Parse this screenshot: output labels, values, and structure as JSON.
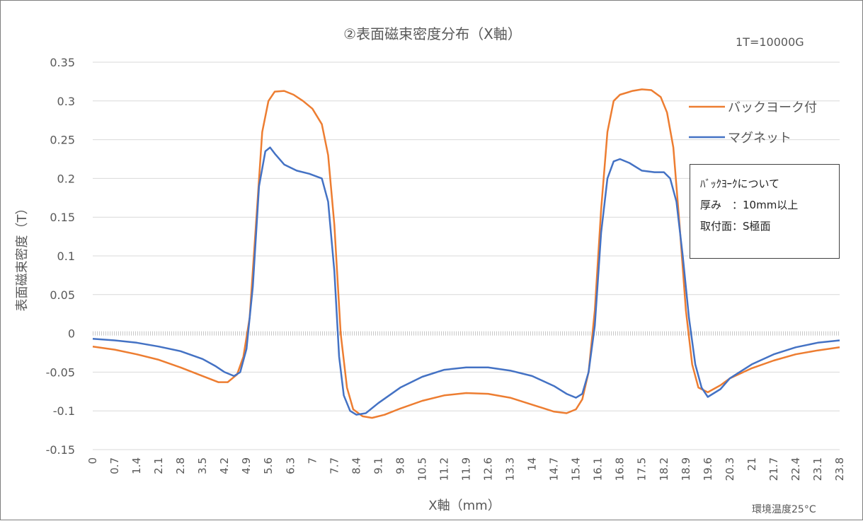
{
  "chart_data": {
    "type": "line",
    "title": "②表面磁束密度分布（X軸）",
    "unit_note": "1T=10000G",
    "xlabel": "X軸（mm）",
    "ylabel": "表面磁束密度（T）",
    "footer_note": "環境温度25°C",
    "ylim": [
      -0.15,
      0.35
    ],
    "yticks": [
      "0.35",
      "0.3",
      "0.25",
      "0.2",
      "0.15",
      "0.1",
      "0.05",
      "0",
      "-0.05",
      "-0.1",
      "-0.15"
    ],
    "xlim": [
      0,
      23.8
    ],
    "xticks": [
      "0",
      "0.7",
      "1.4",
      "2.1",
      "2.8",
      "3.5",
      "4.2",
      "4.9",
      "5.6",
      "6.3",
      "7",
      "7.7",
      "8.4",
      "9.1",
      "9.8",
      "10.5",
      "11.2",
      "11.9",
      "12.6",
      "13.3",
      "14",
      "14.7",
      "15.4",
      "16.1",
      "16.8",
      "17.5",
      "18.2",
      "18.9",
      "19.6",
      "20.3",
      "21",
      "21.7",
      "22.4",
      "23.1",
      "23.8"
    ],
    "grid": true,
    "legend_position": "right",
    "series": [
      {
        "name": "バックヨーク付",
        "color": "#ED7D31",
        "x": [
          0,
          0.7,
          1.4,
          2.1,
          2.8,
          3.5,
          4.0,
          4.3,
          4.6,
          4.8,
          5.0,
          5.2,
          5.4,
          5.6,
          5.8,
          6.1,
          6.4,
          6.7,
          7.0,
          7.3,
          7.5,
          7.7,
          7.9,
          8.1,
          8.3,
          8.6,
          8.9,
          9.3,
          9.8,
          10.5,
          11.2,
          11.9,
          12.6,
          13.3,
          14.0,
          14.7,
          15.1,
          15.4,
          15.6,
          15.8,
          16.0,
          16.2,
          16.4,
          16.6,
          16.8,
          17.2,
          17.5,
          17.8,
          18.1,
          18.3,
          18.5,
          18.7,
          18.9,
          19.1,
          19.3,
          19.6,
          20.0,
          20.3,
          21.0,
          21.7,
          22.4,
          23.1,
          23.8
        ],
        "y": [
          -0.017,
          -0.021,
          -0.027,
          -0.034,
          -0.044,
          -0.055,
          -0.063,
          -0.063,
          -0.053,
          -0.03,
          0.02,
          0.14,
          0.26,
          0.3,
          0.312,
          0.313,
          0.308,
          0.3,
          0.29,
          0.27,
          0.23,
          0.14,
          0.0,
          -0.07,
          -0.098,
          -0.107,
          -0.109,
          -0.105,
          -0.097,
          -0.087,
          -0.08,
          -0.077,
          -0.078,
          -0.083,
          -0.092,
          -0.101,
          -0.103,
          -0.098,
          -0.085,
          -0.05,
          0.03,
          0.16,
          0.26,
          0.3,
          0.308,
          0.313,
          0.315,
          0.314,
          0.305,
          0.285,
          0.24,
          0.14,
          0.03,
          -0.04,
          -0.07,
          -0.076,
          -0.067,
          -0.058,
          -0.045,
          -0.035,
          -0.027,
          -0.022,
          -0.018
        ]
      },
      {
        "name": "マグネット",
        "color": "#4472C4",
        "x": [
          0,
          0.7,
          1.4,
          2.1,
          2.8,
          3.5,
          3.9,
          4.2,
          4.5,
          4.7,
          4.9,
          5.1,
          5.3,
          5.5,
          5.65,
          5.8,
          6.1,
          6.5,
          6.9,
          7.3,
          7.5,
          7.7,
          7.85,
          8.0,
          8.2,
          8.4,
          8.7,
          9.1,
          9.8,
          10.5,
          11.2,
          11.9,
          12.6,
          13.3,
          14.0,
          14.7,
          15.1,
          15.4,
          15.6,
          15.8,
          16.0,
          16.2,
          16.4,
          16.6,
          16.8,
          17.1,
          17.5,
          17.9,
          18.2,
          18.4,
          18.6,
          18.8,
          19.0,
          19.2,
          19.4,
          19.6,
          20.0,
          20.3,
          21.0,
          21.7,
          22.4,
          23.1,
          23.8
        ],
        "y": [
          -0.007,
          -0.009,
          -0.012,
          -0.017,
          -0.023,
          -0.033,
          -0.042,
          -0.05,
          -0.055,
          -0.05,
          -0.02,
          0.06,
          0.19,
          0.235,
          0.24,
          0.232,
          0.218,
          0.21,
          0.206,
          0.2,
          0.17,
          0.08,
          -0.03,
          -0.08,
          -0.1,
          -0.105,
          -0.103,
          -0.09,
          -0.07,
          -0.056,
          -0.047,
          -0.044,
          -0.044,
          -0.048,
          -0.055,
          -0.068,
          -0.078,
          -0.083,
          -0.078,
          -0.05,
          0.01,
          0.13,
          0.2,
          0.222,
          0.225,
          0.22,
          0.21,
          0.208,
          0.208,
          0.2,
          0.17,
          0.1,
          0.02,
          -0.04,
          -0.07,
          -0.082,
          -0.072,
          -0.058,
          -0.04,
          -0.027,
          -0.018,
          -0.012,
          -0.009
        ]
      }
    ],
    "annotation_box": {
      "lines": [
        "ﾊﾞｯｸﾖｰｸについて",
        "厚み　：10mm以上",
        "取付面：S極面"
      ]
    }
  }
}
